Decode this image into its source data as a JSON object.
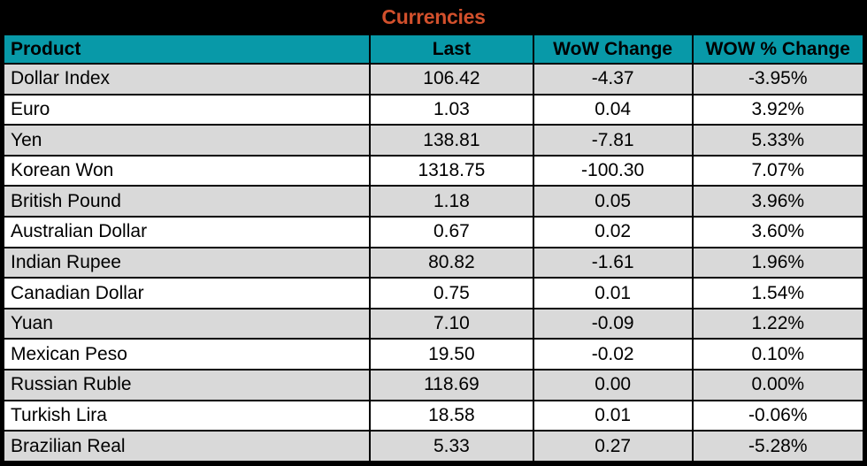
{
  "title": "Currencies",
  "colors": {
    "header_bg": "#0899A8",
    "title_text": "#D2502C",
    "stripe": "#D9D9D9",
    "grid": "#000000"
  },
  "chart_data": {
    "type": "table",
    "title": "Currencies",
    "columns": [
      "Product",
      "Last",
      "WoW Change",
      "WOW % Change"
    ],
    "rows": [
      {
        "product": "Dollar Index",
        "last": "106.42",
        "wow_change": "-4.37",
        "wow_pct_change": "-3.95%"
      },
      {
        "product": "Euro",
        "last": "1.03",
        "wow_change": "0.04",
        "wow_pct_change": "3.92%"
      },
      {
        "product": "Yen",
        "last": "138.81",
        "wow_change": "-7.81",
        "wow_pct_change": "5.33%"
      },
      {
        "product": "Korean Won",
        "last": "1318.75",
        "wow_change": "-100.30",
        "wow_pct_change": "7.07%"
      },
      {
        "product": "British Pound",
        "last": "1.18",
        "wow_change": "0.05",
        "wow_pct_change": "3.96%"
      },
      {
        "product": "Australian Dollar",
        "last": "0.67",
        "wow_change": "0.02",
        "wow_pct_change": "3.60%"
      },
      {
        "product": "Indian Rupee",
        "last": "80.82",
        "wow_change": "-1.61",
        "wow_pct_change": "1.96%"
      },
      {
        "product": "Canadian Dollar",
        "last": "0.75",
        "wow_change": "0.01",
        "wow_pct_change": "1.54%"
      },
      {
        "product": "Yuan",
        "last": "7.10",
        "wow_change": "-0.09",
        "wow_pct_change": "1.22%"
      },
      {
        "product": "Mexican Peso",
        "last": "19.50",
        "wow_change": "-0.02",
        "wow_pct_change": "0.10%"
      },
      {
        "product": "Russian Ruble",
        "last": "118.69",
        "wow_change": "0.00",
        "wow_pct_change": "0.00%"
      },
      {
        "product": "Turkish Lira",
        "last": "18.58",
        "wow_change": "0.01",
        "wow_pct_change": "-0.06%"
      },
      {
        "product": "Brazilian Real",
        "last": "5.33",
        "wow_change": "0.27",
        "wow_pct_change": "-5.28%"
      }
    ]
  }
}
